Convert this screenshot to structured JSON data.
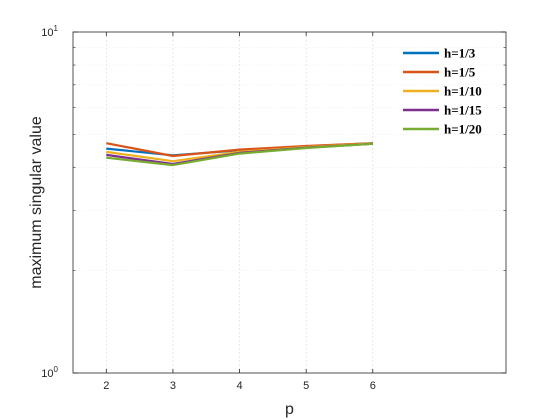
{
  "chart_data": {
    "type": "line",
    "xlabel": "p",
    "ylabel": "maximum singular value",
    "xlim": [
      1.5,
      8
    ],
    "ylim": [
      1,
      10
    ],
    "yscale": "log",
    "x": [
      2,
      3,
      4,
      5,
      6
    ],
    "xticks": [
      "2",
      "3",
      "4",
      "5",
      "6"
    ],
    "yticks": [
      {
        "base": "10",
        "exp": "0",
        "value": 1
      },
      {
        "base": "10",
        "exp": "1",
        "value": 10
      }
    ],
    "grid": true,
    "legend_position": "top-right",
    "series": [
      {
        "name": "h=1/3",
        "color": "#0072BD",
        "values": [
          4.55,
          4.35,
          4.5,
          4.62,
          4.72
        ]
      },
      {
        "name": "h=1/5",
        "color": "#D95319",
        "values": [
          4.72,
          4.33,
          4.52,
          4.63,
          4.72
        ]
      },
      {
        "name": "h=1/10",
        "color": "#EDB120",
        "values": [
          4.45,
          4.18,
          4.45,
          4.6,
          4.71
        ]
      },
      {
        "name": "h=1/15",
        "color": "#7E2F8E",
        "values": [
          4.36,
          4.1,
          4.42,
          4.58,
          4.7
        ]
      },
      {
        "name": "h=1/20",
        "color": "#77AC30",
        "values": [
          4.28,
          4.07,
          4.4,
          4.57,
          4.7
        ]
      }
    ]
  }
}
